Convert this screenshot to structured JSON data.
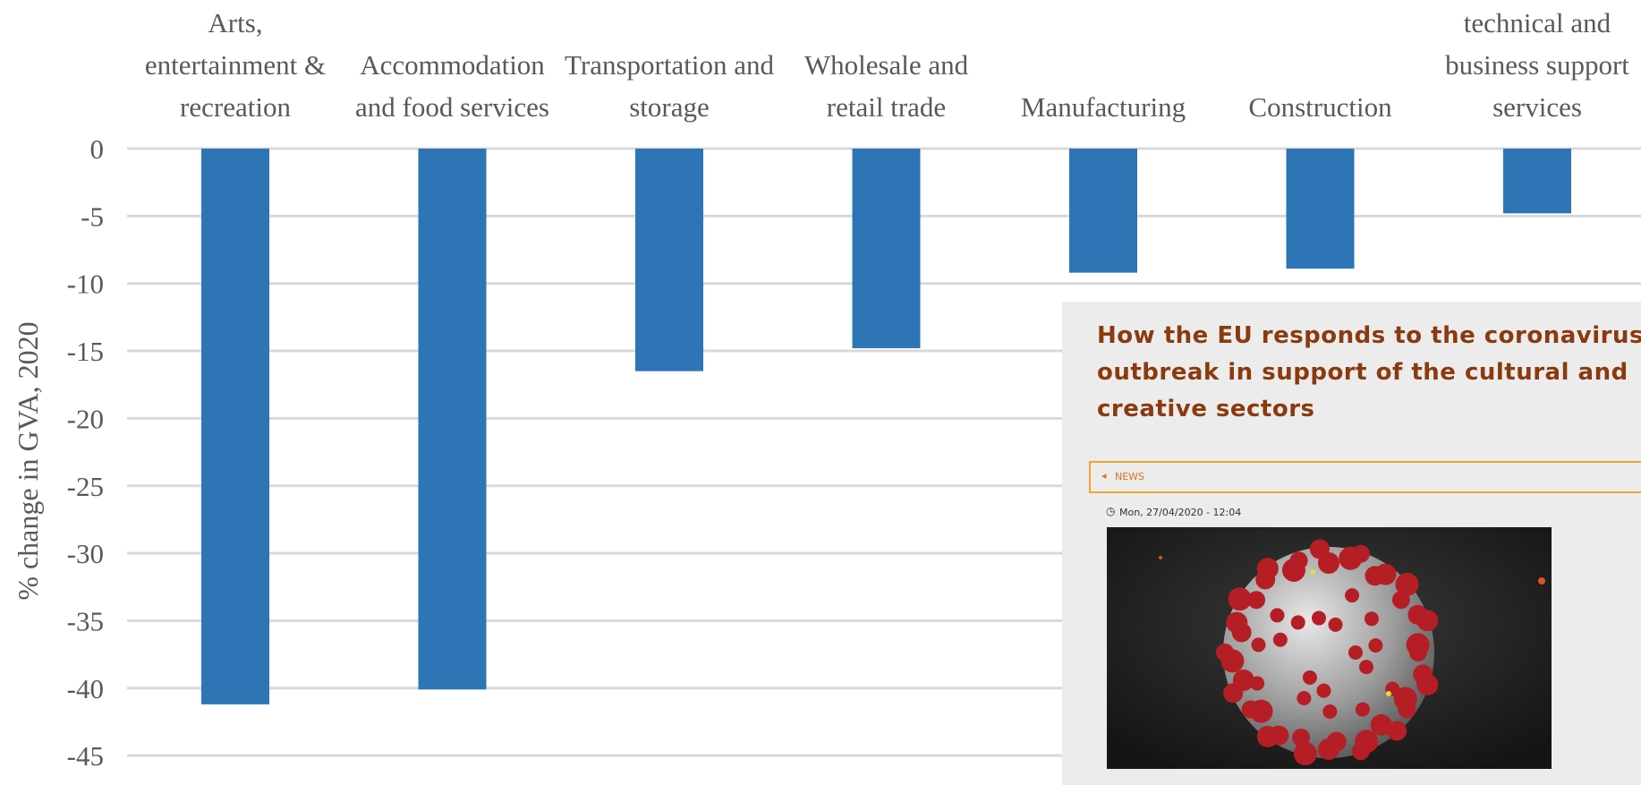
{
  "chart_data": {
    "type": "bar",
    "categories": [
      [
        "Arts,",
        "entertainment &",
        "recreation"
      ],
      [
        "Accommodation",
        "and food services"
      ],
      [
        "Transportation and",
        "storage"
      ],
      [
        "Wholesale and",
        "retail trade"
      ],
      [
        "Manufacturing"
      ],
      [
        "Construction"
      ],
      [
        "technical and",
        "business support",
        "services"
      ]
    ],
    "values": [
      -41.2,
      -40.1,
      -16.5,
      -14.8,
      -9.2,
      -8.9,
      -4.8
    ],
    "ylabel": "% change in GVA, 2020",
    "ylim": [
      -45,
      0
    ],
    "yticks": [
      0,
      -5,
      -10,
      -15,
      -20,
      -25,
      -30,
      -35,
      -40,
      -45
    ],
    "bar_color": "#2e75b6",
    "grid_color": "#d9d9d9",
    "grid": true
  },
  "news": {
    "title_lines": [
      "How the EU responds to the coronavirus",
      "outbreak in support of the cultural and",
      "creative sectors"
    ],
    "section": "NEWS",
    "date": "Mon, 27/04/2020 - 12:04",
    "icons": {
      "back": "chevron-left-icon",
      "clock": "clock-icon"
    },
    "title_color": "#8a3a0e",
    "accent_color": "#f3a32a"
  }
}
